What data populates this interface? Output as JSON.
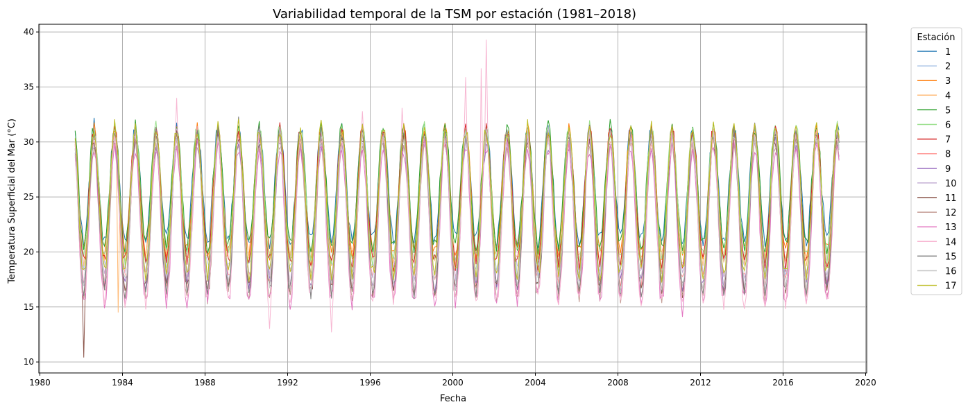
{
  "chart_data": {
    "type": "line",
    "title": "Variabilidad temporal de la TSM por estación (1981–2018)",
    "xlabel": "Fecha",
    "ylabel": "Temperatura Superficial del Mar (°C)",
    "xlim": [
      1979.95,
      2020.05
    ],
    "ylim": [
      9.0,
      40.7
    ],
    "x_ticks": [
      1980,
      1984,
      1988,
      1992,
      1996,
      2000,
      2004,
      2008,
      2012,
      2016,
      2020
    ],
    "y_ticks": [
      10,
      15,
      20,
      25,
      30,
      35,
      40
    ],
    "grid": true,
    "legend": {
      "title": "Estación",
      "placement": "outside-right-top"
    },
    "date_range": {
      "start": "1981-09",
      "end": "2018-09",
      "frequency": "monthly"
    },
    "seasonal_cycle": {
      "peak_month": 8,
      "trough_month": 2,
      "typical_max": 31,
      "typical_min": 16.5
    },
    "series": [
      {
        "name": "1",
        "color": "#1f77b4",
        "min_offset": 4.5,
        "max_offset": 0.0
      },
      {
        "name": "2",
        "color": "#aec7e8",
        "min_offset": 2.0,
        "max_offset": -0.5
      },
      {
        "name": "3",
        "color": "#ff7f0e",
        "min_offset": 3.5,
        "max_offset": 0.0
      },
      {
        "name": "4",
        "color": "#ffbb78",
        "min_offset": 3.0,
        "max_offset": -0.5
      },
      {
        "name": "5",
        "color": "#2ca02c",
        "min_offset": 4.0,
        "max_offset": 0.3
      },
      {
        "name": "6",
        "color": "#98df8a",
        "min_offset": 3.0,
        "max_offset": 0.2
      },
      {
        "name": "7",
        "color": "#d62728",
        "min_offset": 2.5,
        "max_offset": 0.0
      },
      {
        "name": "8",
        "color": "#ff9896",
        "min_offset": 1.0,
        "max_offset": -0.3
      },
      {
        "name": "9",
        "color": "#9467bd",
        "min_offset": 0.5,
        "max_offset": -1.0
      },
      {
        "name": "10",
        "color": "#c5b0d5",
        "min_offset": 1.5,
        "max_offset": -0.5
      },
      {
        "name": "11",
        "color": "#8c564b",
        "min_offset": 0.0,
        "max_offset": -0.5
      },
      {
        "name": "12",
        "color": "#c49c94",
        "min_offset": -0.5,
        "max_offset": -1.0
      },
      {
        "name": "13",
        "color": "#e377c2",
        "min_offset": -1.0,
        "max_offset": -1.5
      },
      {
        "name": "14",
        "color": "#f7b6d2",
        "min_offset": -1.0,
        "max_offset": -0.5
      },
      {
        "name": "15",
        "color": "#7f7f7f",
        "min_offset": 0.0,
        "max_offset": 0.0
      },
      {
        "name": "16",
        "color": "#c7c7c7",
        "min_offset": 0.5,
        "max_offset": -0.3
      },
      {
        "name": "17",
        "color": "#bcbd22",
        "min_offset": 1.5,
        "max_offset": 0.3
      }
    ],
    "notable_values": [
      {
        "series": "14",
        "date": "2001-08",
        "value": 39.3
      },
      {
        "series": "14",
        "date": "2001-05",
        "value": 36.7
      },
      {
        "series": "14",
        "date": "2000-08",
        "value": 35.9
      },
      {
        "series": "14",
        "date": "1986-08",
        "value": 34.0
      },
      {
        "series": "14",
        "date": "1997-07",
        "value": 33.1
      },
      {
        "series": "14",
        "date": "1995-08",
        "value": 32.8
      },
      {
        "series": "1",
        "date": "1982-08",
        "value": 32.2
      },
      {
        "series": "15",
        "date": "1989-08",
        "value": 32.3
      },
      {
        "series": "11",
        "date": "1982-02",
        "value": 10.4
      },
      {
        "series": "14",
        "date": "1994-02",
        "value": 12.7
      },
      {
        "series": "14",
        "date": "1991-02",
        "value": 13.0
      },
      {
        "series": "13",
        "date": "2011-02",
        "value": 14.1
      },
      {
        "series": "4",
        "date": "1983-10",
        "value": 14.5
      }
    ]
  }
}
